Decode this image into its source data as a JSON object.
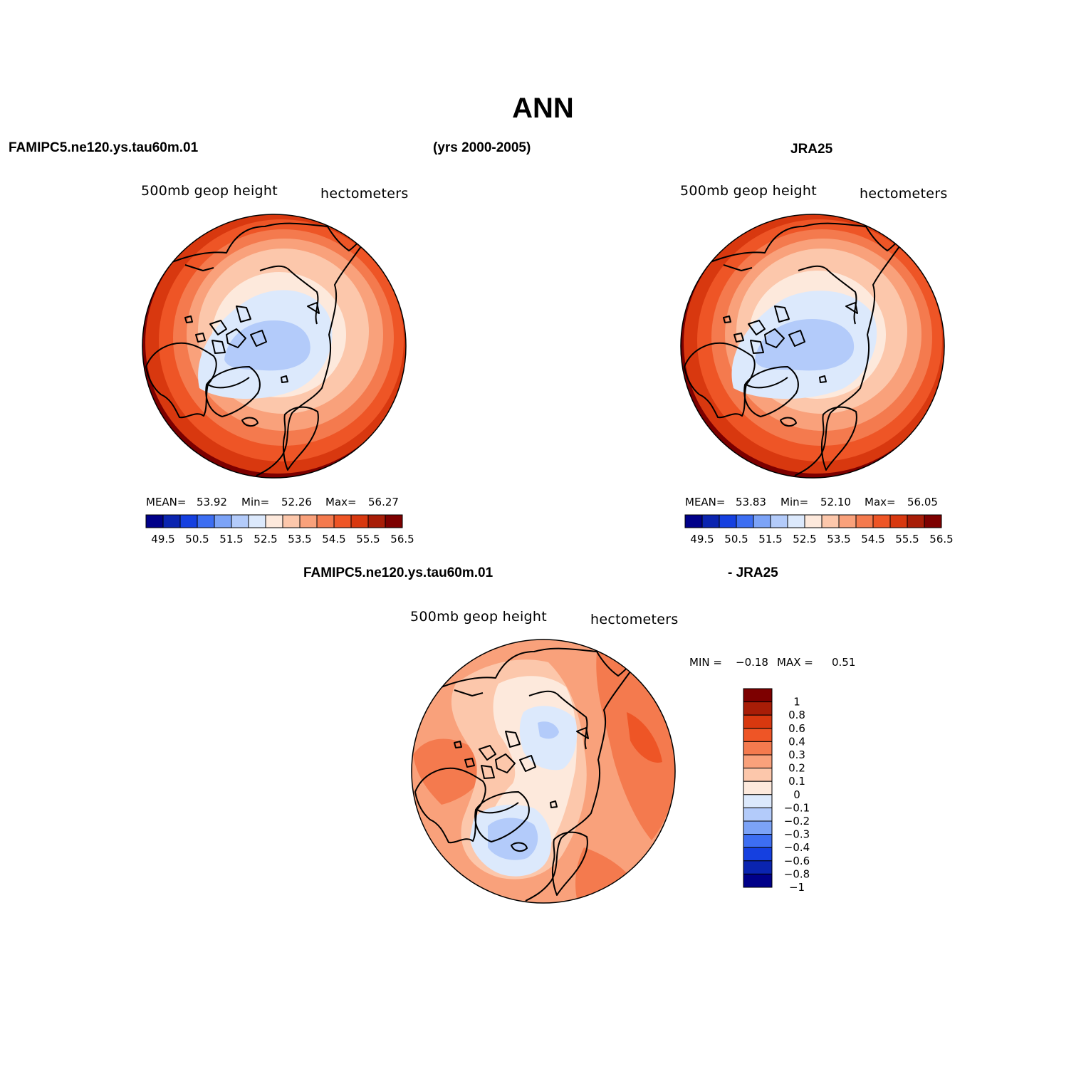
{
  "title": "ANN",
  "subtitle": "(yrs 2000-2005)",
  "panels": {
    "model": {
      "case": "FAMIPC5.ne120.ys.tau60m.01",
      "variable": "500mb geop height",
      "units": "hectometers",
      "mean_label": "MEAN=",
      "mean": "53.92",
      "min_label": "Min=",
      "min": "52.26",
      "max_label": "Max=",
      "max": "56.27"
    },
    "obs": {
      "case": "JRA25",
      "variable": "500mb geop height",
      "units": "hectometers",
      "mean_label": "MEAN=",
      "mean": "53.83",
      "min_label": "Min=",
      "min": "52.10",
      "max_label": "Max=",
      "max": "56.05"
    },
    "diff": {
      "case_a": "FAMIPC5.ne120.ys.tau60m.01",
      "case_b": "- JRA25",
      "variable": "500mb geop height",
      "units": "hectometers",
      "min_label": "MIN =",
      "min": "−0.18",
      "max_label": "MAX =",
      "max": "0.51"
    }
  },
  "colorbar_abs": {
    "labels": [
      "49.5",
      "50.5",
      "51.5",
      "52.5",
      "53.5",
      "54.5",
      "55.5",
      "56.5"
    ],
    "colors": [
      "#000089",
      "#0a24b0",
      "#1540e0",
      "#3d6ef2",
      "#7ca3f7",
      "#b3cbfa",
      "#dce9fc",
      "#fde9dc",
      "#fcc7ab",
      "#f9a17b",
      "#f47a4e",
      "#ee5526",
      "#d8380f",
      "#a81d07",
      "#7d0000"
    ]
  },
  "colorbar_diff": {
    "labels": [
      "1",
      "0.8",
      "0.6",
      "0.4",
      "0.3",
      "0.2",
      "0.1",
      "0",
      "−0.1",
      "−0.2",
      "−0.3",
      "−0.4",
      "−0.6",
      "−0.8",
      "−1"
    ],
    "colors": [
      "#7d0000",
      "#a81d07",
      "#d8380f",
      "#ee5526",
      "#f47a4e",
      "#f9a17b",
      "#fcc7ab",
      "#fde9dc",
      "#dce9fc",
      "#b3cbfa",
      "#7ca3f7",
      "#3d6ef2",
      "#1540e0",
      "#0a24b0",
      "#000089"
    ]
  }
}
